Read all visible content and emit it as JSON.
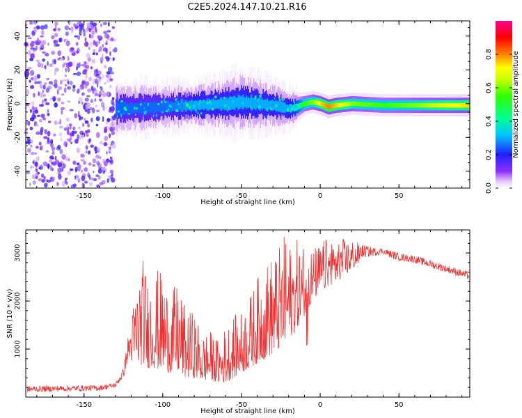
{
  "title": "C2E5.2024.147.10.21.R16",
  "chart_data": [
    {
      "type": "heatmap",
      "xlabel": "Height of straight line (km)",
      "ylabel": "Frequency (Hz)",
      "xlim": [
        -187,
        95
      ],
      "ylim": [
        -50,
        49
      ],
      "xticks": [
        -150,
        -100,
        -50,
        0,
        50
      ],
      "yticks": [
        -40,
        -20,
        0,
        20,
        40
      ],
      "colorbar": {
        "label": "Normalized spectral amplitude",
        "ticks": [
          0.0,
          0.2,
          0.4,
          0.6,
          0.8
        ],
        "tick_labels": [
          "0.0",
          "0.2",
          "0.4",
          "0.6",
          "0.8"
        ],
        "range": [
          0,
          1
        ],
        "colormap": "rainbow"
      },
      "noise_region": {
        "x": [
          -187,
          -130
        ],
        "amplitude": 0.15
      },
      "band": {
        "x": [
          -130,
          -100,
          -80,
          -60,
          -50,
          -40,
          -30,
          -20,
          -15,
          -10,
          -5,
          0,
          5,
          10,
          20,
          40,
          60,
          80,
          95
        ],
        "center_hz": [
          -3,
          -2,
          -1,
          0,
          1,
          0,
          -1,
          -3,
          -2,
          0,
          1,
          0,
          -2,
          -1,
          0,
          -1,
          -1,
          -1,
          -1
        ],
        "halfwidth_hz": [
          7,
          6,
          6,
          7,
          8,
          7,
          6,
          5,
          4,
          3,
          3,
          3,
          3,
          3,
          3,
          3,
          3,
          3,
          3
        ],
        "peak_amplitude": [
          0.25,
          0.25,
          0.3,
          0.3,
          0.3,
          0.3,
          0.3,
          0.3,
          0.4,
          0.55,
          0.6,
          0.75,
          0.8,
          0.75,
          0.6,
          0.55,
          0.6,
          0.7,
          0.75
        ]
      },
      "grid": false
    },
    {
      "type": "line",
      "xlabel": "Height of straight line (km)",
      "ylabel": "SNR (10 * v/v)",
      "xlim": [
        -187,
        95
      ],
      "ylim": [
        0,
        3480
      ],
      "xticks": [
        -150,
        -100,
        -50,
        0,
        50
      ],
      "yticks": [
        1000,
        2000,
        3000
      ],
      "color": "#f03030",
      "envelope": {
        "x": [
          -187,
          -140,
          -130,
          -125,
          -122,
          -118,
          -115,
          -112,
          -110,
          -105,
          -100,
          -95,
          -90,
          -85,
          -80,
          -75,
          -70,
          -65,
          -60,
          -55,
          -50,
          -45,
          -40,
          -35,
          -30,
          -25,
          -22,
          -20,
          -15,
          -10,
          -5,
          0,
          5,
          10,
          15,
          20,
          25,
          30,
          35,
          40,
          45,
          50,
          60,
          70,
          80,
          90,
          95
        ],
        "base": [
          100,
          130,
          200,
          400,
          800,
          700,
          650,
          700,
          600,
          600,
          550,
          500,
          500,
          400,
          400,
          350,
          350,
          300,
          300,
          400,
          500,
          600,
          700,
          800,
          900,
          1000,
          1100,
          1200,
          1400,
          1700,
          2000,
          2200,
          2300,
          2400,
          2500,
          2650,
          2800,
          2850,
          2900,
          2950,
          2850,
          2800,
          2750,
          2650,
          2550,
          2450,
          2400
        ],
        "peak": [
          230,
          250,
          300,
          600,
          1300,
          2100,
          2700,
          2950,
          2500,
          2700,
          2600,
          2200,
          2400,
          1800,
          1800,
          1300,
          1400,
          1200,
          1500,
          1700,
          1800,
          2100,
          2500,
          2800,
          3000,
          3200,
          3450,
          3200,
          3300,
          3200,
          3100,
          3200,
          3350,
          3400,
          3300,
          3300,
          3200,
          3150,
          3100,
          3100,
          3050,
          3000,
          2950,
          2850,
          2750,
          2650,
          2600
        ]
      },
      "grid": false
    }
  ]
}
